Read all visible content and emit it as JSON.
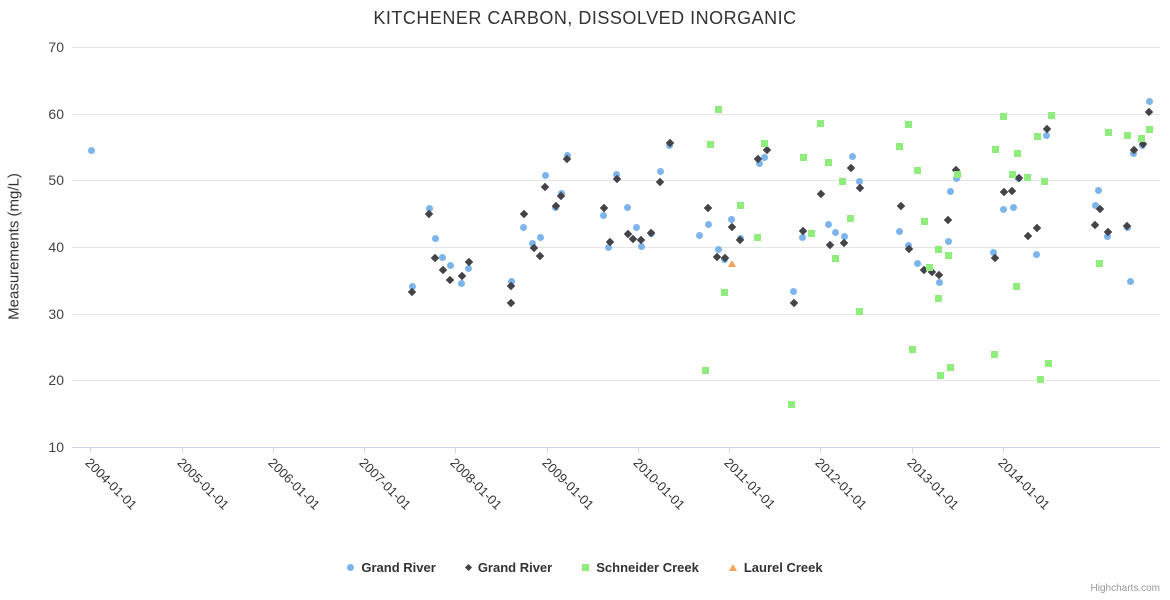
{
  "title": "KITCHENER CARBON, DISSOLVED INORGANIC",
  "credits_label": "Highcharts.com",
  "chart_data": {
    "type": "scatter",
    "title": "KITCHENER CARBON, DISSOLVED INORGANIC",
    "xlabel": "",
    "ylabel": "Measurements (mg/L)",
    "xlim": [
      2003.8,
      2015.72
    ],
    "ylim": [
      10,
      70
    ],
    "yticks": [
      10,
      20,
      30,
      40,
      50,
      60,
      70
    ],
    "xticks": [
      {
        "year": 2004,
        "label": "2004-01-01"
      },
      {
        "year": 2005,
        "label": "2005-01-01"
      },
      {
        "year": 2006,
        "label": "2006-01-01"
      },
      {
        "year": 2007,
        "label": "2007-01-01"
      },
      {
        "year": 2008,
        "label": "2008-01-01"
      },
      {
        "year": 2009,
        "label": "2009-01-01"
      },
      {
        "year": 2010,
        "label": "2010-01-01"
      },
      {
        "year": 2011,
        "label": "2011-01-01"
      },
      {
        "year": 2012,
        "label": "2012-01-01"
      },
      {
        "year": 2013,
        "label": "2013-01-01"
      },
      {
        "year": 2014,
        "label": "2014-01-01"
      }
    ],
    "grid": "horizontal",
    "legend_position": "bottom-center",
    "series": [
      {
        "name": "Grand River",
        "marker": "circle",
        "color": "#7cb5ec",
        "points": [
          [
            2004.01,
            54.5
          ],
          [
            2007.53,
            34.1
          ],
          [
            2007.72,
            45.8
          ],
          [
            2007.78,
            41.3
          ],
          [
            2007.86,
            38.4
          ],
          [
            2007.95,
            37.3
          ],
          [
            2008.07,
            34.5
          ],
          [
            2008.14,
            36.8
          ],
          [
            2008.62,
            34.8
          ],
          [
            2008.75,
            43.0
          ],
          [
            2008.85,
            40.5
          ],
          [
            2008.93,
            41.5
          ],
          [
            2008.99,
            50.8
          ],
          [
            2009.1,
            46.0
          ],
          [
            2009.16,
            48.0
          ],
          [
            2009.23,
            53.8
          ],
          [
            2009.62,
            44.7
          ],
          [
            2009.68,
            39.9
          ],
          [
            2009.77,
            50.9
          ],
          [
            2009.89,
            45.9
          ],
          [
            2009.98,
            43.0
          ],
          [
            2010.04,
            40.1
          ],
          [
            2010.15,
            42.0
          ],
          [
            2010.25,
            51.3
          ],
          [
            2010.35,
            55.2
          ],
          [
            2010.68,
            41.7
          ],
          [
            2010.77,
            43.4
          ],
          [
            2010.88,
            39.7
          ],
          [
            2010.95,
            38.1
          ],
          [
            2011.03,
            44.1
          ],
          [
            2011.12,
            41.3
          ],
          [
            2011.33,
            52.6
          ],
          [
            2011.39,
            53.5
          ],
          [
            2011.71,
            33.3
          ],
          [
            2011.8,
            41.5
          ],
          [
            2012.09,
            43.4
          ],
          [
            2012.17,
            42.2
          ],
          [
            2012.26,
            41.6
          ],
          [
            2012.35,
            53.6
          ],
          [
            2012.43,
            49.9
          ],
          [
            2012.87,
            42.4
          ],
          [
            2012.96,
            40.3
          ],
          [
            2013.06,
            37.6
          ],
          [
            2013.3,
            34.7
          ],
          [
            2013.4,
            40.8
          ],
          [
            2013.43,
            48.4
          ],
          [
            2013.49,
            50.3
          ],
          [
            2013.9,
            39.2
          ],
          [
            2014.01,
            45.7
          ],
          [
            2014.11,
            45.9
          ],
          [
            2014.17,
            50.3
          ],
          [
            2014.37,
            38.9
          ],
          [
            2014.48,
            56.8
          ],
          [
            2015.01,
            46.2
          ],
          [
            2015.05,
            48.5
          ],
          [
            2015.15,
            41.6
          ],
          [
            2015.36,
            42.9
          ],
          [
            2015.4,
            34.8
          ],
          [
            2015.43,
            54.1
          ],
          [
            2015.53,
            55.2
          ],
          [
            2015.6,
            61.9
          ]
        ]
      },
      {
        "name": "Grand River",
        "marker": "diamond",
        "color": "#434348",
        "points": [
          [
            2007.53,
            33.3
          ],
          [
            2007.71,
            45.0
          ],
          [
            2007.78,
            38.3
          ],
          [
            2007.86,
            36.5
          ],
          [
            2007.94,
            35.0
          ],
          [
            2008.07,
            35.6
          ],
          [
            2008.15,
            37.7
          ],
          [
            2008.61,
            34.2
          ],
          [
            2008.61,
            31.6
          ],
          [
            2008.75,
            44.9
          ],
          [
            2008.86,
            39.9
          ],
          [
            2008.93,
            38.6
          ],
          [
            2008.98,
            49.0
          ],
          [
            2009.1,
            46.1
          ],
          [
            2009.16,
            47.7
          ],
          [
            2009.22,
            53.2
          ],
          [
            2009.63,
            45.9
          ],
          [
            2009.69,
            40.8
          ],
          [
            2009.77,
            50.2
          ],
          [
            2009.89,
            41.9
          ],
          [
            2009.95,
            41.2
          ],
          [
            2010.03,
            41.0
          ],
          [
            2010.14,
            42.1
          ],
          [
            2010.24,
            49.7
          ],
          [
            2010.35,
            55.6
          ],
          [
            2010.77,
            45.9
          ],
          [
            2010.87,
            38.5
          ],
          [
            2010.95,
            38.3
          ],
          [
            2011.03,
            43.0
          ],
          [
            2011.12,
            41.0
          ],
          [
            2011.32,
            53.2
          ],
          [
            2011.41,
            54.6
          ],
          [
            2011.71,
            31.6
          ],
          [
            2011.81,
            42.4
          ],
          [
            2012.01,
            47.9
          ],
          [
            2012.1,
            40.3
          ],
          [
            2012.26,
            40.6
          ],
          [
            2012.33,
            51.8
          ],
          [
            2012.43,
            48.8
          ],
          [
            2012.88,
            46.2
          ],
          [
            2012.97,
            39.7
          ],
          [
            2013.13,
            36.5
          ],
          [
            2013.22,
            36.3
          ],
          [
            2013.3,
            35.8
          ],
          [
            2013.4,
            44.0
          ],
          [
            2013.49,
            51.5
          ],
          [
            2013.91,
            38.3
          ],
          [
            2014.01,
            48.2
          ],
          [
            2014.1,
            48.4
          ],
          [
            2014.17,
            50.4
          ],
          [
            2014.27,
            41.7
          ],
          [
            2014.37,
            42.9
          ],
          [
            2014.48,
            57.7
          ],
          [
            2015.01,
            43.3
          ],
          [
            2015.06,
            45.7
          ],
          [
            2015.15,
            42.3
          ],
          [
            2015.36,
            43.1
          ],
          [
            2015.43,
            54.5
          ],
          [
            2015.53,
            55.5
          ],
          [
            2015.6,
            60.3
          ]
        ]
      },
      {
        "name": "Schneider Creek",
        "marker": "square",
        "color": "#90ed7d",
        "points": [
          [
            2010.74,
            21.5
          ],
          [
            2010.79,
            55.4
          ],
          [
            2010.88,
            60.6
          ],
          [
            2010.95,
            33.2
          ],
          [
            2011.12,
            46.3
          ],
          [
            2011.31,
            41.5
          ],
          [
            2011.39,
            55.6
          ],
          [
            2011.68,
            16.4
          ],
          [
            2011.81,
            53.4
          ],
          [
            2011.9,
            42.0
          ],
          [
            2012.0,
            58.6
          ],
          [
            2012.09,
            52.7
          ],
          [
            2012.17,
            38.3
          ],
          [
            2012.24,
            49.9
          ],
          [
            2012.33,
            44.3
          ],
          [
            2012.43,
            30.4
          ],
          [
            2012.87,
            55.1
          ],
          [
            2012.96,
            58.4
          ],
          [
            2013.01,
            24.6
          ],
          [
            2013.06,
            51.5
          ],
          [
            2013.14,
            43.8
          ],
          [
            2013.19,
            36.9
          ],
          [
            2013.29,
            39.7
          ],
          [
            2013.29,
            32.3
          ],
          [
            2013.32,
            20.8
          ],
          [
            2013.4,
            38.8
          ],
          [
            2013.42,
            22.0
          ],
          [
            2013.5,
            50.9
          ],
          [
            2013.91,
            23.9
          ],
          [
            2013.92,
            54.7
          ],
          [
            2014.01,
            59.6
          ],
          [
            2014.1,
            50.9
          ],
          [
            2014.15,
            34.1
          ],
          [
            2014.16,
            54.1
          ],
          [
            2014.27,
            50.5
          ],
          [
            2014.38,
            56.6
          ],
          [
            2014.41,
            20.2
          ],
          [
            2014.46,
            49.8
          ],
          [
            2014.5,
            22.6
          ],
          [
            2014.53,
            59.7
          ],
          [
            2015.06,
            37.6
          ],
          [
            2015.16,
            57.2
          ],
          [
            2015.36,
            56.7
          ],
          [
            2015.52,
            56.3
          ],
          [
            2015.6,
            57.6
          ]
        ]
      },
      {
        "name": "Laurel Creek",
        "marker": "triangle",
        "color": "#f7a35c",
        "points": [
          [
            2011.03,
            37.4
          ]
        ]
      }
    ]
  }
}
